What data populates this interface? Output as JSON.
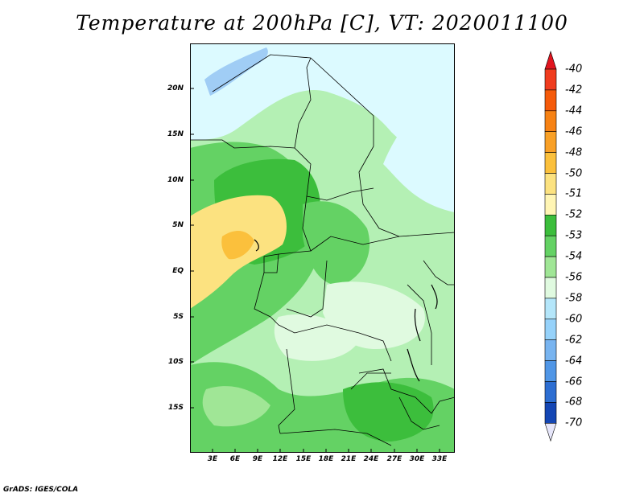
{
  "title": "Temperature at 200hPa [C], VT: 2020011100",
  "credit": "GrADS: IGES/COLA",
  "map": {
    "x_ticks": [
      "3E",
      "6E",
      "9E",
      "12E",
      "15E",
      "18E",
      "21E",
      "24E",
      "27E",
      "30E",
      "33E"
    ],
    "y_ticks": [
      "20N",
      "15N",
      "10N",
      "5N",
      "EQ",
      "5S",
      "10S",
      "15S"
    ],
    "lon_range": [
      0,
      35
    ],
    "lat_range": [
      -19,
      25
    ]
  },
  "colorbar": {
    "labels": [
      "-40",
      "-42",
      "-44",
      "-46",
      "-48",
      "-50",
      "-51",
      "-52",
      "-53",
      "-54",
      "-56",
      "-58",
      "-60",
      "-62",
      "-64",
      "-66",
      "-68",
      "-70"
    ],
    "colors": [
      "#f03c1e",
      "#f55a0a",
      "#f78214",
      "#f9a026",
      "#fbc03c",
      "#fce280",
      "#fff5b4",
      "#3cbe3c",
      "#64d264",
      "#a0e696",
      "#e0fae0",
      "#b4e6fa",
      "#96d2fa",
      "#78b4f0",
      "#5096e6",
      "#2d6ed2",
      "#1446b4",
      "#0a2882",
      "#000a64"
    ],
    "top_arrow_color": "#e1141e",
    "bottom_arrow_color": "#e6e6fa"
  },
  "palette": {
    "very_light_cyan": "#e0fae0",
    "pale_green": "#b4f0b4",
    "light_green": "#a0e696",
    "green": "#64d264",
    "mid_green": "#3cbe3c",
    "pale_yellow": "#fce280",
    "yellow": "#fbc03c",
    "cool_cyan": "#dcfaff",
    "light_blue": "#a0cdf5"
  }
}
